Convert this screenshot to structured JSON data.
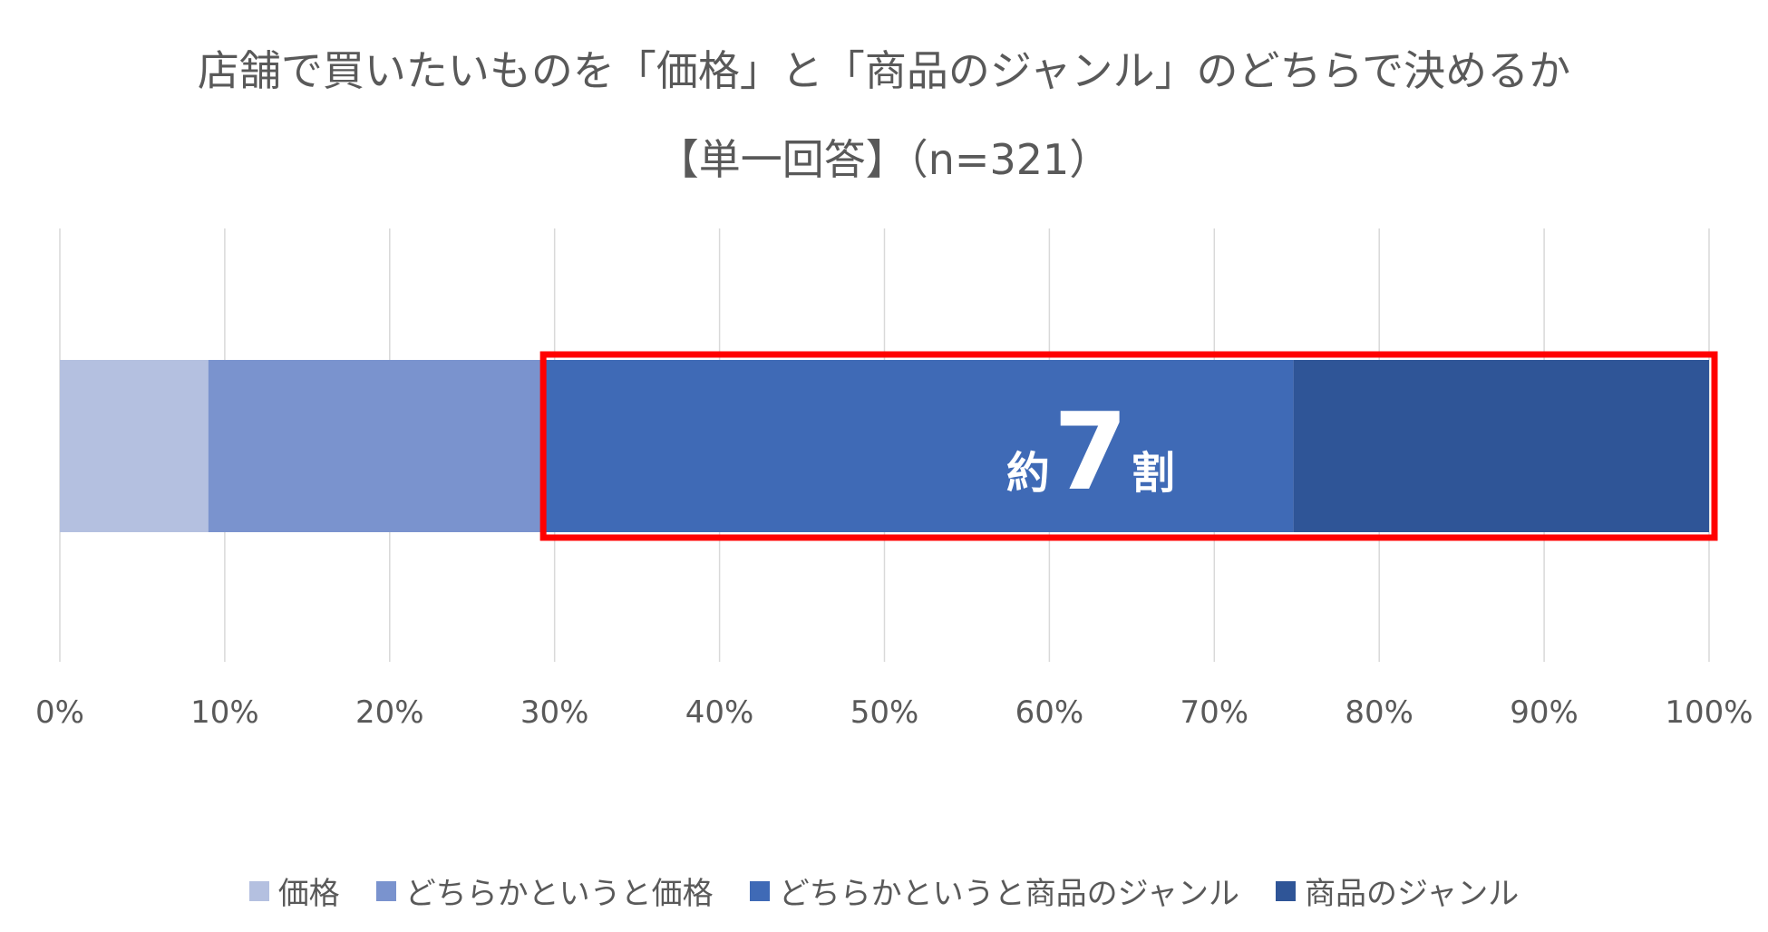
{
  "chart_data": {
    "type": "bar",
    "orientation": "horizontal",
    "stacked": "100%",
    "title": "店舗で買いたいものを「価格」と「商品のジャンル」のどちらで決めるか",
    "subtitle": "【単一回答】（n=321）",
    "xlim": [
      0,
      100
    ],
    "x_ticks": [
      "0%",
      "10%",
      "20%",
      "30%",
      "40%",
      "50%",
      "60%",
      "70%",
      "80%",
      "90%",
      "100%"
    ],
    "grid": true,
    "legend_position": "bottom",
    "series": [
      {
        "name": "価格",
        "value": 9.0,
        "color": "#B4C0E0"
      },
      {
        "name": "どちらかというと価格",
        "value": 20.2,
        "color": "#7A93CE"
      },
      {
        "name": "どちらかというと商品のジャンル",
        "value": 45.6,
        "color": "#3F6AB6"
      },
      {
        "name": "商品のジャンル",
        "value": 25.2,
        "color": "#2F5597"
      }
    ],
    "annotation": {
      "prefix": "約",
      "number": "7",
      "suffix": "割",
      "highlight_from": 29.2,
      "highlight_to": 100,
      "highlight_color": "#FF0000"
    }
  }
}
